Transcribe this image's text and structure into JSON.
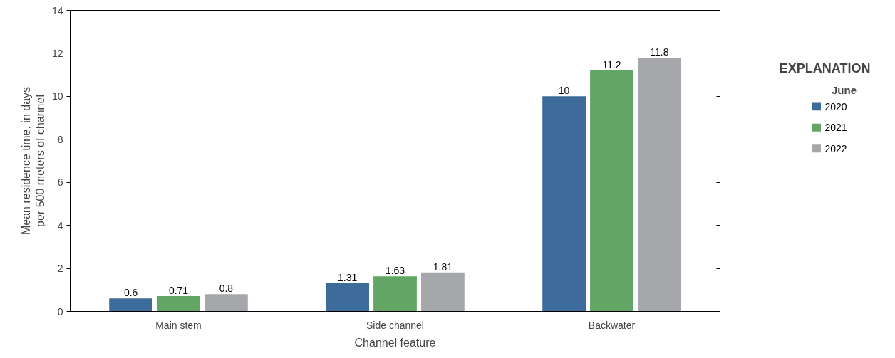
{
  "chart_data": {
    "type": "bar",
    "xlabel": "Channel feature",
    "ylabel": "Mean residence time, in days\nper 500 meters of channel",
    "categories": [
      "Main stem",
      "Side channel",
      "Backwater"
    ],
    "series": [
      {
        "name": "2020",
        "color": "#3d6b9a",
        "values": [
          0.6,
          1.31,
          10
        ]
      },
      {
        "name": "2021",
        "color": "#62a564",
        "values": [
          0.71,
          1.63,
          11.2
        ]
      },
      {
        "name": "2022",
        "color": "#a6a7ab",
        "values": [
          0.8,
          1.81,
          11.8
        ]
      }
    ],
    "ylim": [
      0,
      14
    ],
    "yticks": [
      0,
      2,
      4,
      6,
      8,
      10,
      12,
      14
    ],
    "data_labels": true,
    "grid": false,
    "legend": "right",
    "legend_title": "June",
    "annotations": [
      "EXPLANATION"
    ]
  }
}
